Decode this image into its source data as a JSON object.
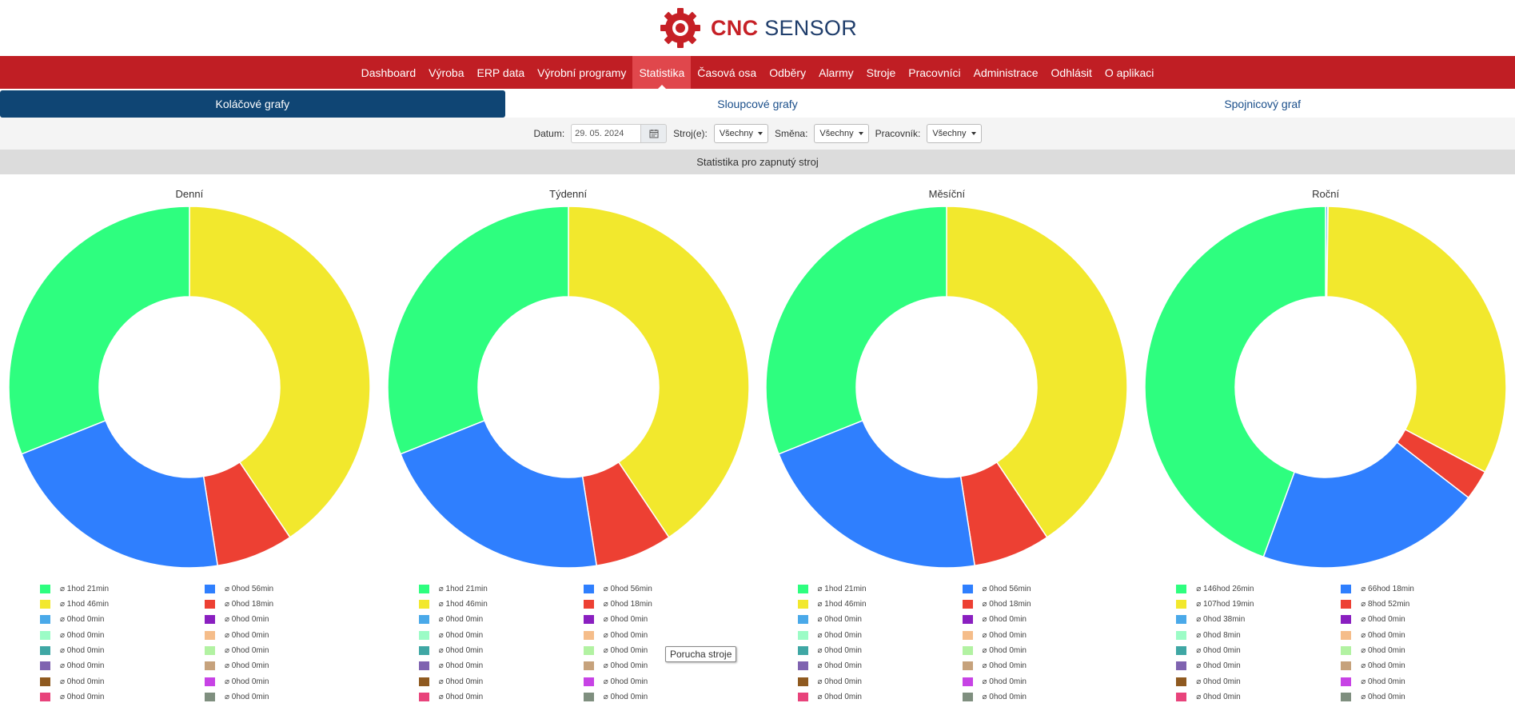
{
  "brand": {
    "cnc": "CNC",
    "sensor": "SENSOR"
  },
  "nav": [
    {
      "label": "Dashboard",
      "name": "nav-dashboard",
      "active": false
    },
    {
      "label": "Výroba",
      "name": "nav-vyroba",
      "active": false
    },
    {
      "label": "ERP data",
      "name": "nav-erp-data",
      "active": false
    },
    {
      "label": "Výrobní programy",
      "name": "nav-vyrobni-programy",
      "active": false
    },
    {
      "label": "Statistika",
      "name": "nav-statistika",
      "active": true
    },
    {
      "label": "Časová osa",
      "name": "nav-casova-osa",
      "active": false
    },
    {
      "label": "Odběry",
      "name": "nav-odbery",
      "active": false
    },
    {
      "label": "Alarmy",
      "name": "nav-alarmy",
      "active": false
    },
    {
      "label": "Stroje",
      "name": "nav-stroje",
      "active": false
    },
    {
      "label": "Pracovníci",
      "name": "nav-pracovnici",
      "active": false
    },
    {
      "label": "Administrace",
      "name": "nav-administrace",
      "active": false
    },
    {
      "label": "Odhlásit",
      "name": "nav-odhlasit",
      "active": false
    },
    {
      "label": "O aplikaci",
      "name": "nav-o-aplikaci",
      "active": false
    }
  ],
  "subtabs": [
    {
      "label": "Koláčové grafy",
      "active": true
    },
    {
      "label": "Sloupcové grafy",
      "active": false
    },
    {
      "label": "Spojnicový graf",
      "active": false
    }
  ],
  "filters": {
    "date_label": "Datum:",
    "date_value": "29. 05. 2024",
    "machine_label": "Stroj(e):",
    "machine_value": "Všechny",
    "shift_label": "Směna:",
    "shift_value": "Všechny",
    "worker_label": "Pracovník:",
    "worker_value": "Všechny"
  },
  "section_title": "Statistika pro zapnutý stroj",
  "tooltip": "Porucha stroje",
  "legend_colors": [
    "#2efe7f",
    "#2f7ffe",
    "#f2e82d",
    "#ed4033",
    "#4aa9e9",
    "#8a1fc0",
    "#9cfcc6",
    "#f5bd8a",
    "#3fa7a4",
    "#b2f2a2",
    "#7f63b0",
    "#c6a27c",
    "#8f5a20",
    "#c743e5",
    "#e8437b",
    "#7f8f7f"
  ],
  "chart_data": [
    {
      "type": "pie",
      "title": "Denní",
      "segments": [
        {
          "color": "#f2e82d",
          "value": 106
        },
        {
          "color": "#ed4033",
          "value": 18
        },
        {
          "color": "#2f7ffe",
          "value": 56
        },
        {
          "color": "#2efe7f",
          "value": 81
        }
      ],
      "legend": [
        "⌀ 1hod 21min",
        "⌀ 0hod 56min",
        "⌀ 1hod 46min",
        "⌀ 0hod 18min",
        "⌀ 0hod 0min",
        "⌀ 0hod 0min",
        "⌀ 0hod 0min",
        "⌀ 0hod 0min",
        "⌀ 0hod 0min",
        "⌀ 0hod 0min",
        "⌀ 0hod 0min",
        "⌀ 0hod 0min",
        "⌀ 0hod 0min",
        "⌀ 0hod 0min",
        "⌀ 0hod 0min",
        "⌀ 0hod 0min"
      ]
    },
    {
      "type": "pie",
      "title": "Týdenní",
      "segments": [
        {
          "color": "#f2e82d",
          "value": 106
        },
        {
          "color": "#ed4033",
          "value": 18
        },
        {
          "color": "#2f7ffe",
          "value": 56
        },
        {
          "color": "#2efe7f",
          "value": 81
        }
      ],
      "legend": [
        "⌀ 1hod 21min",
        "⌀ 0hod 56min",
        "⌀ 1hod 46min",
        "⌀ 0hod 18min",
        "⌀ 0hod 0min",
        "⌀ 0hod 0min",
        "⌀ 0hod 0min",
        "⌀ 0hod 0min",
        "⌀ 0hod 0min",
        "⌀ 0hod 0min",
        "⌀ 0hod 0min",
        "⌀ 0hod 0min",
        "⌀ 0hod 0min",
        "⌀ 0hod 0min",
        "⌀ 0hod 0min",
        "⌀ 0hod 0min"
      ]
    },
    {
      "type": "pie",
      "title": "Měsíční",
      "segments": [
        {
          "color": "#f2e82d",
          "value": 106
        },
        {
          "color": "#ed4033",
          "value": 18
        },
        {
          "color": "#2f7ffe",
          "value": 56
        },
        {
          "color": "#2efe7f",
          "value": 81
        }
      ],
      "legend": [
        "⌀ 1hod 21min",
        "⌀ 0hod 56min",
        "⌀ 1hod 46min",
        "⌀ 0hod 18min",
        "⌀ 0hod 0min",
        "⌀ 0hod 0min",
        "⌀ 0hod 0min",
        "⌀ 0hod 0min",
        "⌀ 0hod 0min",
        "⌀ 0hod 0min",
        "⌀ 0hod 0min",
        "⌀ 0hod 0min",
        "⌀ 0hod 0min",
        "⌀ 0hod 0min",
        "⌀ 0hod 0min",
        "⌀ 0hod 0min"
      ]
    },
    {
      "type": "pie",
      "title": "Roční",
      "segments": [
        {
          "color": "#4aa9e9",
          "value": 0.63
        },
        {
          "color": "#9cfcc6",
          "value": 0.13
        },
        {
          "color": "#f2e82d",
          "value": 107.32
        },
        {
          "color": "#ed4033",
          "value": 8.87
        },
        {
          "color": "#2f7ffe",
          "value": 66.3
        },
        {
          "color": "#2efe7f",
          "value": 146.43
        }
      ],
      "legend": [
        "⌀ 146hod 26min",
        "⌀ 66hod 18min",
        "⌀ 107hod 19min",
        "⌀ 8hod 52min",
        "⌀ 0hod 38min",
        "⌀ 0hod 0min",
        "⌀ 0hod 8min",
        "⌀ 0hod 0min",
        "⌀ 0hod 0min",
        "⌀ 0hod 0min",
        "⌀ 0hod 0min",
        "⌀ 0hod 0min",
        "⌀ 0hod 0min",
        "⌀ 0hod 0min",
        "⌀ 0hod 0min",
        "⌀ 0hod 0min"
      ]
    }
  ]
}
